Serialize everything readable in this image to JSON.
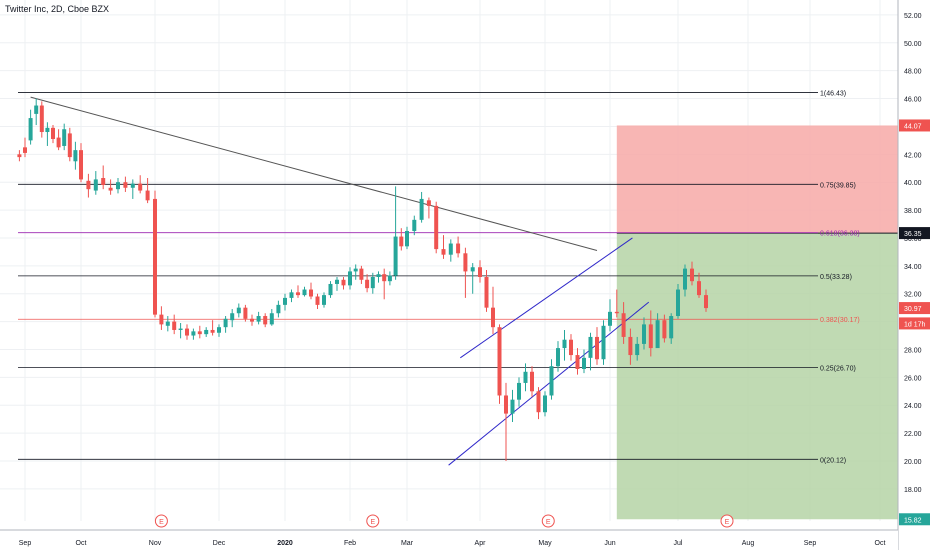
{
  "header": {
    "title": "Twitter Inc, 2D, Cboe BZX"
  },
  "colors": {
    "up": "#26a69a",
    "down": "#ef5350",
    "fib_line": "#131722",
    "fib_618": "#9c27b0",
    "fib_382": "#ef5350",
    "channel": "#2f28c9",
    "trendline": "#555555",
    "stop_zone": "#f7a9a7",
    "target_zone": "#b5d4a6",
    "grid": "#eef0f3"
  },
  "chart_data": {
    "type": "candlestick",
    "title": "Twitter Inc, 2D, Cboe BZX",
    "ylim": [
      15,
      53
    ],
    "y_ticks": [
      "18.00",
      "20.00",
      "22.00",
      "24.00",
      "26.00",
      "28.00",
      "30.00",
      "32.00",
      "34.00",
      "36.00",
      "38.00",
      "40.00",
      "42.00",
      "44.00",
      "46.00",
      "48.00",
      "50.00",
      "52.00"
    ],
    "x_ticks": [
      "Sep",
      "Oct",
      "Nov",
      "Dec",
      "2020",
      "Feb",
      "Mar",
      "Apr",
      "May",
      "Jun",
      "Jul",
      "Aug",
      "Sep",
      "Oct"
    ],
    "fib_levels": [
      {
        "label": "1(46.43)",
        "value": 46.43,
        "style": "fib_line"
      },
      {
        "label": "0.75(39.85)",
        "value": 39.85,
        "style": "fib_line"
      },
      {
        "label": "0.618(36.38)",
        "value": 36.38,
        "style": "fib_618"
      },
      {
        "label": "0.5(33.28)",
        "value": 33.28,
        "style": "fib_line"
      },
      {
        "label": "0.382(30.17)",
        "value": 30.17,
        "style": "fib_382"
      },
      {
        "label": "0.25(26.70)",
        "value": 26.7,
        "style": "fib_line"
      },
      {
        "label": "0(20.12)",
        "value": 20.12,
        "style": "fib_line"
      }
    ],
    "price_badges": [
      {
        "label": "44.07",
        "value": 44.07,
        "color": "#ef5350"
      },
      {
        "label": "36.35",
        "value": 36.35,
        "color": "#131722"
      },
      {
        "label": "30.97",
        "value": 30.97,
        "color": "#ef5350"
      },
      {
        "label": "1d 17h",
        "value": 29.87,
        "color": "#ef5350"
      },
      {
        "label": "15.82",
        "value": 15.82,
        "color": "#26a69a"
      }
    ],
    "earnings_markers": [
      {
        "label": "E",
        "month": 2.1
      },
      {
        "label": "E",
        "month": 5.4
      },
      {
        "label": "E",
        "month": 8.05
      },
      {
        "label": "E",
        "month": 10.7
      }
    ],
    "position": {
      "stop": 44.07,
      "entry": 36.35,
      "target": 15.82,
      "start_month": 9.1
    },
    "trendline": [
      [
        0.1,
        46.1
      ],
      [
        8.8,
        35.1
      ]
    ],
    "channel_upper": [
      [
        6.73,
        27.4
      ],
      [
        9.33,
        36.0
      ]
    ],
    "channel_lower": [
      [
        6.57,
        19.7
      ],
      [
        9.57,
        31.4
      ]
    ],
    "candles": [
      [
        -0.1,
        42,
        42.3,
        41.5,
        41.8
      ],
      [
        0.0,
        42.5,
        43.2,
        41.8,
        42.1
      ],
      [
        0.1,
        43,
        45.2,
        42.7,
        44.6
      ],
      [
        0.2,
        44.9,
        46.0,
        44.1,
        45.5
      ],
      [
        0.3,
        45.5,
        45.8,
        43.2,
        43.6
      ],
      [
        0.4,
        43.6,
        44.3,
        42.6,
        43.9
      ],
      [
        0.5,
        43.9,
        44.1,
        42.8,
        43.1
      ],
      [
        0.6,
        43.2,
        43.8,
        42.3,
        42.5
      ],
      [
        0.7,
        42.6,
        44.2,
        42.3,
        43.8
      ],
      [
        0.8,
        43.5,
        43.9,
        41.5,
        41.8
      ],
      [
        0.9,
        41.5,
        42.9,
        40.9,
        42.3
      ],
      [
        1.0,
        42.3,
        42.8,
        40,
        40.2
      ],
      [
        1.1,
        40.1,
        40.6,
        38.9,
        39.5
      ],
      [
        1.2,
        39.4,
        40.8,
        39.1,
        40.2
      ],
      [
        1.3,
        40.3,
        41.2,
        39.5,
        39.8
      ],
      [
        1.4,
        39.6,
        40.2,
        39.1,
        39.4
      ],
      [
        1.5,
        39.5,
        40.3,
        39.2,
        40.0
      ],
      [
        1.6,
        40.0,
        40.4,
        39.3,
        39.6
      ],
      [
        1.7,
        39.6,
        40.2,
        38.8,
        39.9
      ],
      [
        1.8,
        39.9,
        40.5,
        39.2,
        39.4
      ],
      [
        1.9,
        39.4,
        40.3,
        38.5,
        38.7
      ],
      [
        2.0,
        38.8,
        39.4,
        30.3,
        30.5
      ],
      [
        2.1,
        30.5,
        31.1,
        29.4,
        29.8
      ],
      [
        2.2,
        29.7,
        30.4,
        29.3,
        30.0
      ],
      [
        2.3,
        30.0,
        30.5,
        29.1,
        29.4
      ],
      [
        2.4,
        29.4,
        29.9,
        28.8,
        29.5
      ],
      [
        2.5,
        29.5,
        29.8,
        28.7,
        29.0
      ],
      [
        2.6,
        29.0,
        29.5,
        28.7,
        29.3
      ],
      [
        2.7,
        29.3,
        29.7,
        28.8,
        29.1
      ],
      [
        2.8,
        29.1,
        29.6,
        28.9,
        29.4
      ],
      [
        2.9,
        29.4,
        30.1,
        29.0,
        29.2
      ],
      [
        3.0,
        29.2,
        29.8,
        28.9,
        29.6
      ],
      [
        3.1,
        29.6,
        30.4,
        29.2,
        30.2
      ],
      [
        3.2,
        30.1,
        30.9,
        29.6,
        30.6
      ],
      [
        3.3,
        30.6,
        31.3,
        30.3,
        31.0
      ],
      [
        3.4,
        31.0,
        31.2,
        30.0,
        30.2
      ],
      [
        3.5,
        30.2,
        30.5,
        29.7,
        30.0
      ],
      [
        3.6,
        30.0,
        30.7,
        29.8,
        30.4
      ],
      [
        3.7,
        30.4,
        30.6,
        29.6,
        29.8
      ],
      [
        3.8,
        29.8,
        30.9,
        29.7,
        30.6
      ],
      [
        3.9,
        30.6,
        31.5,
        30.3,
        31.2
      ],
      [
        4.0,
        31.2,
        32.0,
        30.8,
        31.7
      ],
      [
        4.1,
        31.7,
        32.3,
        31.4,
        32.1
      ],
      [
        4.2,
        32.1,
        32.6,
        31.7,
        31.9
      ],
      [
        4.3,
        31.9,
        32.5,
        31.8,
        32.3
      ],
      [
        4.4,
        32.3,
        32.8,
        31.6,
        31.8
      ],
      [
        4.5,
        31.8,
        32.0,
        30.9,
        31.2
      ],
      [
        4.6,
        31.2,
        32.1,
        31.0,
        31.9
      ],
      [
        4.7,
        31.9,
        32.9,
        31.7,
        32.7
      ],
      [
        4.8,
        32.7,
        33.2,
        32.2,
        33.0
      ],
      [
        4.9,
        33.0,
        33.2,
        32.3,
        32.6
      ],
      [
        5.0,
        32.6,
        33.9,
        32.3,
        33.6
      ],
      [
        5.1,
        33.6,
        34.1,
        33.0,
        33.8
      ],
      [
        5.2,
        33.8,
        34.0,
        32.7,
        33.0
      ],
      [
        5.3,
        33.0,
        33.4,
        32.1,
        32.4
      ],
      [
        5.4,
        32.4,
        33.5,
        32.0,
        33.2
      ],
      [
        5.5,
        33.2,
        33.6,
        32.8,
        33.4
      ],
      [
        5.6,
        33.4,
        33.8,
        31.6,
        32.9
      ],
      [
        5.7,
        32.9,
        33.6,
        32.6,
        33.3
      ],
      [
        5.8,
        33.3,
        39.7,
        33.0,
        36.1
      ],
      [
        5.9,
        36.1,
        36.7,
        35.1,
        35.4
      ],
      [
        6.0,
        35.4,
        36.8,
        35.2,
        36.5
      ],
      [
        6.1,
        36.5,
        37.6,
        36.2,
        37.3
      ],
      [
        6.2,
        37.3,
        39.3,
        37.1,
        38.8
      ],
      [
        6.3,
        38.7,
        38.9,
        37.4,
        38.3
      ],
      [
        6.4,
        38.3,
        38.6,
        34.9,
        35.2
      ],
      [
        6.5,
        35.2,
        36.2,
        34.5,
        34.8
      ],
      [
        6.6,
        34.8,
        35.9,
        34.3,
        35.6
      ],
      [
        6.7,
        35.6,
        36.1,
        34.6,
        34.9
      ],
      [
        6.8,
        34.9,
        35.3,
        31.7,
        33.6
      ],
      [
        6.9,
        33.6,
        34.2,
        32.0,
        33.9
      ],
      [
        7.0,
        33.9,
        34.4,
        32.8,
        33.2
      ],
      [
        7.1,
        33.2,
        33.7,
        30.7,
        31.0
      ],
      [
        7.2,
        31.0,
        32.5,
        29.1,
        29.6
      ],
      [
        7.3,
        29.6,
        29.8,
        24.1,
        24.7
      ],
      [
        7.4,
        24.7,
        25.6,
        20.0,
        23.4
      ],
      [
        7.5,
        23.4,
        25.1,
        22.8,
        24.4
      ],
      [
        7.6,
        24.4,
        26.0,
        23.9,
        25.6
      ],
      [
        7.7,
        25.6,
        27.0,
        25.0,
        26.4
      ],
      [
        7.8,
        26.4,
        26.8,
        24.6,
        25.0
      ],
      [
        7.9,
        25.0,
        25.3,
        23.0,
        23.5
      ],
      [
        8.0,
        23.5,
        25.0,
        23.2,
        24.7
      ],
      [
        8.1,
        24.7,
        27.3,
        24.4,
        26.8
      ],
      [
        8.2,
        26.8,
        28.6,
        26.4,
        28.1
      ],
      [
        8.3,
        28.1,
        29.4,
        27.2,
        28.7
      ],
      [
        8.4,
        28.7,
        29.1,
        27.2,
        27.6
      ],
      [
        8.5,
        27.6,
        28.1,
        26.2,
        26.6
      ],
      [
        8.6,
        26.6,
        28.0,
        26.3,
        27.4
      ],
      [
        8.7,
        27.4,
        29.2,
        26.5,
        28.9
      ],
      [
        8.8,
        28.9,
        29.6,
        26.9,
        27.3
      ],
      [
        8.9,
        27.3,
        30.1,
        26.9,
        29.7
      ],
      [
        9.0,
        29.7,
        31.6,
        29.3,
        30.7
      ],
      [
        9.1,
        30.7,
        32.3,
        30.3,
        30.6
      ],
      [
        9.2,
        30.6,
        31.4,
        28.4,
        28.9
      ],
      [
        9.3,
        28.9,
        29.5,
        26.9,
        27.6
      ],
      [
        9.4,
        27.6,
        28.9,
        27.2,
        28.4
      ],
      [
        9.5,
        28.4,
        30.3,
        28.0,
        29.8
      ],
      [
        9.6,
        29.8,
        30.8,
        27.5,
        28.1
      ],
      [
        9.7,
        28.1,
        30.6,
        28.3,
        30.1
      ],
      [
        9.8,
        30.1,
        30.5,
        28.5,
        28.8
      ],
      [
        9.9,
        28.8,
        30.6,
        28.4,
        30.4
      ],
      [
        10.0,
        30.4,
        32.7,
        30.2,
        32.3
      ],
      [
        10.1,
        32.3,
        34.1,
        31.8,
        33.8
      ],
      [
        10.2,
        33.8,
        34.3,
        32.6,
        32.9
      ],
      [
        10.3,
        32.9,
        33.5,
        31.7,
        31.9
      ],
      [
        10.4,
        31.9,
        32.3,
        30.7,
        30.97
      ]
    ]
  }
}
